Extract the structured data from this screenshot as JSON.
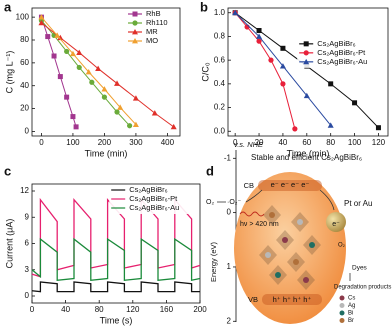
{
  "chart_data": [
    {
      "type": "line",
      "panel_label": "a",
      "x_label": "Time (min)",
      "y_label": "C (mg L⁻¹)",
      "xlim": [
        -30,
        440
      ],
      "ylim": [
        -4,
        108
      ],
      "xticks": [
        0,
        100,
        200,
        300,
        400
      ],
      "yticks": [
        0,
        20,
        40,
        60,
        80,
        100
      ],
      "legend": "upper right",
      "series": [
        {
          "name": "RhB",
          "color": "#a2368f",
          "marker": "square",
          "x": [
            0,
            20,
            40,
            60,
            80,
            100,
            110
          ],
          "values": [
            100,
            83,
            66,
            48,
            30,
            13,
            4
          ]
        },
        {
          "name": "Rh110",
          "color": "#6aab3a",
          "marker": "circle",
          "x": [
            0,
            40,
            80,
            120,
            160,
            200,
            240,
            280
          ],
          "values": [
            97,
            84,
            70,
            56,
            43,
            30,
            17,
            5
          ]
        },
        {
          "name": "MR",
          "color": "#e0302a",
          "marker": "triangle",
          "x": [
            0,
            60,
            120,
            180,
            240,
            300,
            360,
            420
          ],
          "values": [
            95,
            82,
            69,
            55,
            42,
            29,
            16,
            4
          ]
        },
        {
          "name": "MO",
          "color": "#f0a030",
          "marker": "triangle",
          "x": [
            0,
            50,
            100,
            150,
            200,
            250,
            300
          ],
          "values": [
            100,
            84,
            68,
            52,
            37,
            21,
            6
          ]
        }
      ]
    },
    {
      "type": "line",
      "panel_label": "b",
      "x_label": "Time (min)",
      "y_label": "C/C₀",
      "xlim": [
        -6,
        128
      ],
      "ylim": [
        -0.04,
        1.04
      ],
      "xticks": [
        0,
        20,
        40,
        60,
        80,
        100,
        120
      ],
      "yticks": [
        {
          "value": 0,
          "label": "0.0"
        },
        0.2,
        0.4,
        0.6,
        0.8,
        {
          "value": 1,
          "label": "1.0"
        }
      ],
      "legend": "center right",
      "series": [
        {
          "name": "Cs₂AgBiBr₆",
          "color": "#111111",
          "marker": "square",
          "x": [
            0,
            20,
            40,
            60,
            80,
            100,
            120
          ],
          "values": [
            1,
            0.85,
            0.7,
            0.55,
            0.4,
            0.24,
            0.03
          ]
        },
        {
          "name": "Cs₂AgBiBr₆-Pt",
          "color": "#e8203a",
          "marker": "circle",
          "x": [
            0,
            10,
            20,
            30,
            40,
            50
          ],
          "values": [
            1,
            0.88,
            0.76,
            0.6,
            0.4,
            0.02
          ]
        },
        {
          "name": "Cs₂AgBiBr₆-Au",
          "color": "#2a4aa0",
          "marker": "triangle",
          "x": [
            0,
            20,
            40,
            60,
            80
          ],
          "values": [
            1,
            0.8,
            0.55,
            0.3,
            0.05
          ]
        }
      ]
    },
    {
      "type": "line",
      "panel_label": "c",
      "x_label": "Time (s)",
      "y_label": "Current (μA)",
      "xlim": [
        0,
        200
      ],
      "ylim": [
        -0.8,
        12.8
      ],
      "xticks": [
        0,
        40,
        80,
        120,
        160,
        200
      ],
      "yticks": [
        0,
        3,
        6,
        9,
        12
      ],
      "legend": "upper right",
      "x": [
        0,
        10,
        10,
        30,
        30,
        50,
        50,
        70,
        70,
        90,
        90,
        110,
        110,
        130,
        130,
        150,
        150,
        170,
        170,
        190,
        190,
        200
      ],
      "series": [
        {
          "name": "Cs₂AgBiBr₆",
          "color": "#111111",
          "values": [
            0.6,
            0.5,
            1.6,
            1.4,
            0.5,
            0.5,
            1.6,
            1.4,
            0.5,
            0.5,
            1.6,
            1.4,
            0.5,
            0.5,
            1.6,
            1.4,
            0.5,
            0.5,
            1.6,
            1.4,
            0.5,
            0.5
          ]
        },
        {
          "name": "Cs₂AgBiBr₆-Pt",
          "color": "#e6206e",
          "values": [
            2.5,
            2.2,
            11,
            8.5,
            3,
            3.5,
            11,
            8.8,
            3.2,
            3.6,
            11,
            8.8,
            3.2,
            3.6,
            11,
            8.8,
            3.2,
            3.6,
            11,
            8.8,
            3.2,
            3.5
          ]
        },
        {
          "name": "Cs₂AgBiBr₆-Au",
          "color": "#1a8a3a",
          "values": [
            3,
            2.2,
            6.5,
            5,
            1.8,
            2,
            6.5,
            5,
            1.8,
            2,
            6.5,
            5.2,
            1.8,
            2,
            6.5,
            5.2,
            1.8,
            2,
            6.5,
            5.2,
            1.8,
            2
          ]
        }
      ]
    },
    {
      "type": "diagram",
      "panel_label": "d",
      "axis_title": "v.s. NHE",
      "y_label": "Energy (eV)",
      "ylim": [
        -1.3,
        2.05
      ],
      "yticks": [
        -1,
        0,
        1,
        2
      ],
      "title": "Stable and efficient Cs₂AgBiBr₆",
      "cb": "CB",
      "vb": "VB",
      "electrons": "e⁻ e⁻ e⁻ e⁻",
      "holes": "h⁺ h⁺ h⁺ h⁺",
      "o2_in": "O₂",
      "o2_out": "·O₂⁻",
      "light": "hν > 420 nm",
      "cocatalyst": "Pt or Au",
      "cocatalyst_electron": "e⁻",
      "o2_small": "O₂",
      "dyes": "Dyes",
      "products": "Degradation products",
      "elements": [
        {
          "name": "Cs",
          "color": "#8b3a4a"
        },
        {
          "name": "Ag",
          "color": "#b8b8b8"
        },
        {
          "name": "Bi",
          "color": "#1f6e62"
        },
        {
          "name": "Br",
          "color": "#b0703a"
        }
      ]
    }
  ]
}
